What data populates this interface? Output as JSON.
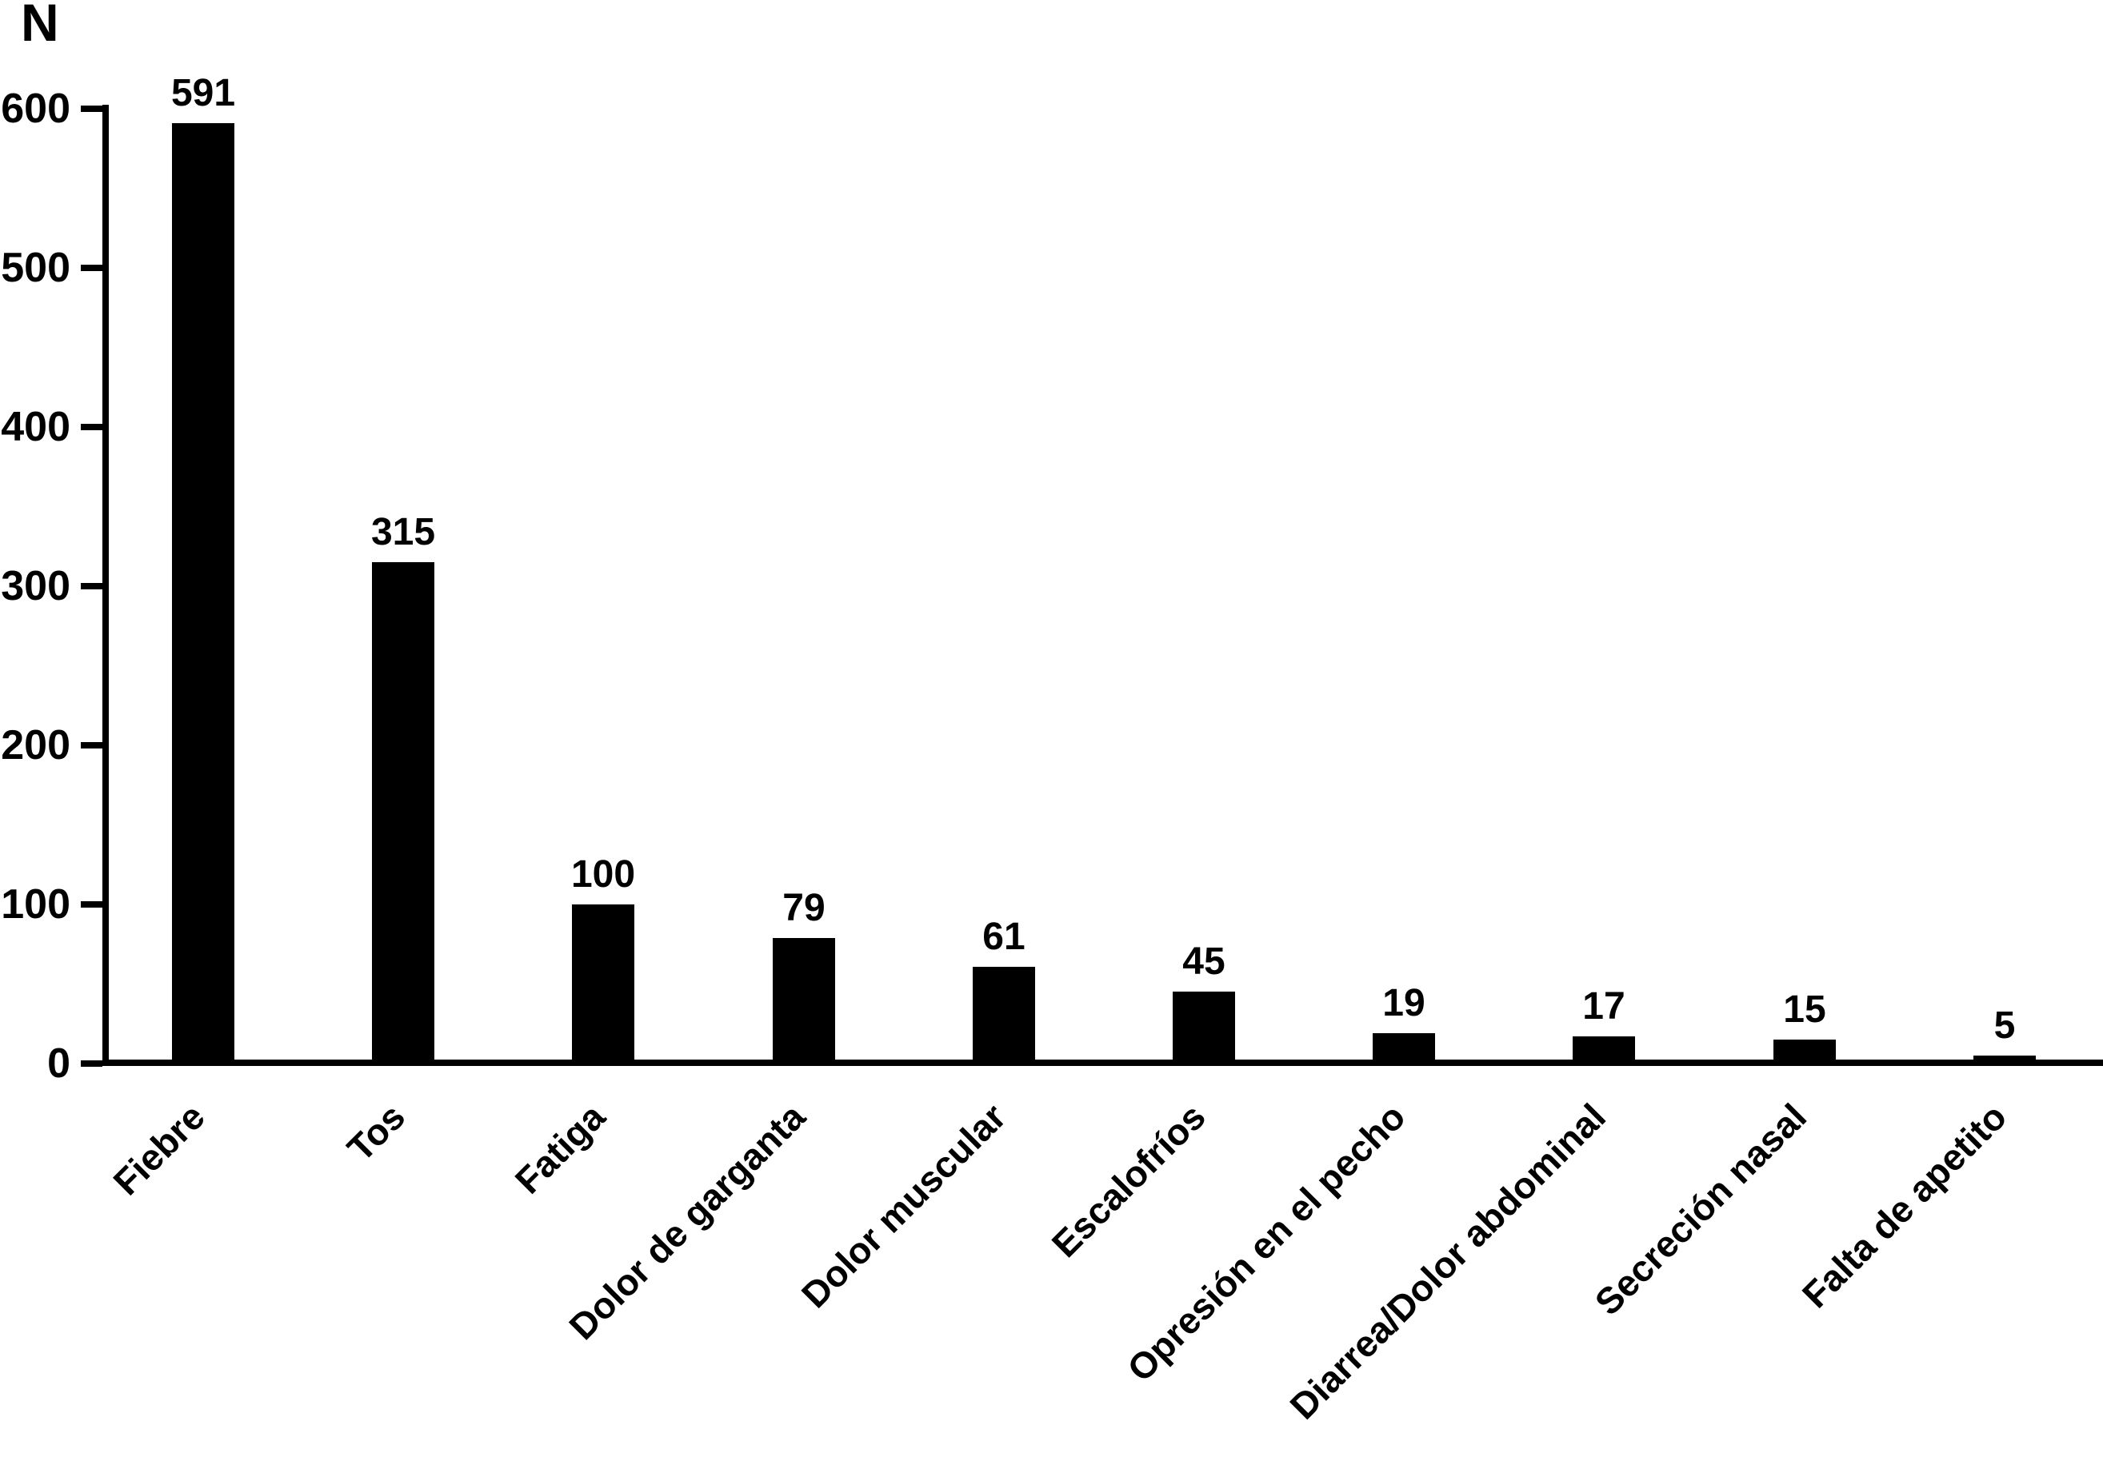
{
  "chart_data": {
    "type": "bar",
    "title": "",
    "xlabel": "",
    "ylabel": "N",
    "categories": [
      "Fiebre",
      "Tos",
      "Fatiga",
      "Dolor de garganta",
      "Dolor muscular",
      "Escalofríos",
      "Opresión en el pecho",
      "Diarrea/Dolor abdominal",
      "Secreción nasal",
      "Falta de apetito"
    ],
    "values": [
      591,
      315,
      100,
      79,
      61,
      45,
      19,
      17,
      15,
      5
    ],
    "yticks": [
      0,
      100,
      200,
      300,
      400,
      500,
      600
    ],
    "ylim": [
      0,
      600
    ],
    "grid": false,
    "legend": null,
    "bar_color": "#000000",
    "background_color": "#ffffff",
    "x_label_rotation_deg": 45
  }
}
